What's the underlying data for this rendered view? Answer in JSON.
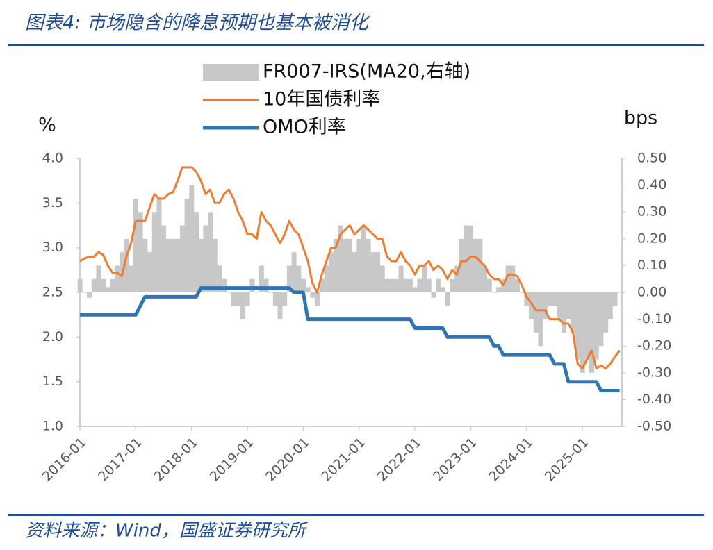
{
  "chart_data": {
    "type": "line",
    "title": "图表4: 市场隐含的降息预期也基本被消化",
    "source": "资料来源：Wind，国盛证券研究所",
    "y_label": "%",
    "y2_label": "bps",
    "x": [
      "2016-01",
      "2016-02",
      "2016-03",
      "2016-04",
      "2016-05",
      "2016-06",
      "2016-07",
      "2016-08",
      "2016-09",
      "2016-10",
      "2016-11",
      "2016-12",
      "2017-01",
      "2017-02",
      "2017-03",
      "2017-04",
      "2017-05",
      "2017-06",
      "2017-07",
      "2017-08",
      "2017-09",
      "2017-10",
      "2017-11",
      "2017-12",
      "2018-01",
      "2018-02",
      "2018-03",
      "2018-04",
      "2018-05",
      "2018-06",
      "2018-07",
      "2018-08",
      "2018-09",
      "2018-10",
      "2018-11",
      "2018-12",
      "2019-01",
      "2019-02",
      "2019-03",
      "2019-04",
      "2019-05",
      "2019-06",
      "2019-07",
      "2019-08",
      "2019-09",
      "2019-10",
      "2019-11",
      "2019-12",
      "2020-01",
      "2020-02",
      "2020-03",
      "2020-04",
      "2020-05",
      "2020-06",
      "2020-07",
      "2020-08",
      "2020-09",
      "2020-10",
      "2020-11",
      "2020-12",
      "2021-01",
      "2021-02",
      "2021-03",
      "2021-04",
      "2021-05",
      "2021-06",
      "2021-07",
      "2021-08",
      "2021-09",
      "2021-10",
      "2021-11",
      "2021-12",
      "2022-01",
      "2022-02",
      "2022-03",
      "2022-04",
      "2022-05",
      "2022-06",
      "2022-07",
      "2022-08",
      "2022-09",
      "2022-10",
      "2022-11",
      "2022-12",
      "2023-01",
      "2023-02",
      "2023-03",
      "2023-04",
      "2023-05",
      "2023-06",
      "2023-07",
      "2023-08",
      "2023-09",
      "2023-10",
      "2023-11",
      "2023-12",
      "2024-01",
      "2024-02",
      "2024-03",
      "2024-04",
      "2024-05",
      "2024-06",
      "2024-07",
      "2024-08",
      "2024-09",
      "2024-10",
      "2024-11",
      "2024-12",
      "2025-01",
      "2025-02",
      "2025-03",
      "2025-04",
      "2025-05",
      "2025-06",
      "2025-07",
      "2025-08",
      "2025-09"
    ],
    "series": [
      {
        "name": "FR007-IRS(MA20,右轴)",
        "color": "#c8c8c8",
        "axis": "y2",
        "kind": "bar",
        "values": [
          0.05,
          0.0,
          -0.02,
          0.05,
          0.1,
          0.05,
          0.02,
          0.05,
          0.1,
          0.15,
          0.2,
          0.1,
          0.35,
          0.3,
          0.2,
          0.15,
          0.3,
          0.35,
          0.25,
          0.2,
          0.2,
          0.2,
          0.25,
          0.35,
          0.4,
          0.3,
          0.2,
          0.25,
          0.3,
          0.2,
          0.1,
          0.05,
          0.0,
          -0.05,
          -0.05,
          -0.1,
          -0.05,
          0.05,
          0.0,
          0.1,
          0.05,
          0.0,
          -0.05,
          -0.1,
          -0.05,
          0.1,
          0.15,
          0.1,
          0.05,
          0.02,
          -0.02,
          -0.05,
          0.05,
          0.1,
          0.15,
          0.2,
          0.25,
          0.2,
          0.2,
          0.15,
          0.2,
          0.25,
          0.2,
          0.15,
          0.15,
          0.1,
          0.05,
          0.05,
          0.05,
          0.1,
          0.05,
          0.05,
          0.02,
          0.05,
          0.1,
          0.05,
          -0.02,
          0.05,
          0.02,
          -0.05,
          0.05,
          0.1,
          0.2,
          0.25,
          0.25,
          0.2,
          0.2,
          0.1,
          0.05,
          0.0,
          0.02,
          0.05,
          0.1,
          0.1,
          0.05,
          0.0,
          -0.05,
          -0.1,
          -0.15,
          -0.2,
          -0.1,
          -0.05,
          -0.05,
          -0.1,
          -0.15,
          -0.1,
          -0.15,
          -0.25,
          -0.3,
          -0.25,
          -0.3,
          -0.25,
          -0.2,
          -0.15,
          -0.1,
          -0.05,
          0.0
        ]
      },
      {
        "name": "10年国债利率",
        "color": "#ed7d31",
        "width": 3,
        "values": [
          2.85,
          2.88,
          2.9,
          2.9,
          2.95,
          2.92,
          2.8,
          2.72,
          2.72,
          2.68,
          2.9,
          3.05,
          3.3,
          3.3,
          3.3,
          3.45,
          3.6,
          3.55,
          3.55,
          3.6,
          3.62,
          3.75,
          3.9,
          3.9,
          3.9,
          3.85,
          3.75,
          3.6,
          3.65,
          3.5,
          3.5,
          3.6,
          3.65,
          3.55,
          3.4,
          3.3,
          3.15,
          3.15,
          3.1,
          3.4,
          3.3,
          3.25,
          3.15,
          3.05,
          3.15,
          3.3,
          3.2,
          3.15,
          3.0,
          2.85,
          2.6,
          2.5,
          2.7,
          2.85,
          3.0,
          3.0,
          3.15,
          3.2,
          3.25,
          3.15,
          3.2,
          3.25,
          3.2,
          3.15,
          3.1,
          3.1,
          2.9,
          2.85,
          2.85,
          2.95,
          2.85,
          2.8,
          2.7,
          2.8,
          2.8,
          2.85,
          2.75,
          2.8,
          2.75,
          2.65,
          2.75,
          2.7,
          2.85,
          2.85,
          2.9,
          2.9,
          2.85,
          2.8,
          2.7,
          2.65,
          2.65,
          2.58,
          2.7,
          2.7,
          2.68,
          2.58,
          2.45,
          2.38,
          2.3,
          2.3,
          2.3,
          2.2,
          2.2,
          2.2,
          2.15,
          2.15,
          2.05,
          1.7,
          1.65,
          1.75,
          1.85,
          1.65,
          1.68,
          1.65,
          1.7,
          1.78,
          1.85
        ]
      },
      {
        "name": "OMO利率",
        "color": "#2e75b6",
        "width": 5,
        "values": [
          2.25,
          2.25,
          2.25,
          2.25,
          2.25,
          2.25,
          2.25,
          2.25,
          2.25,
          2.25,
          2.25,
          2.25,
          2.25,
          2.35,
          2.45,
          2.45,
          2.45,
          2.45,
          2.45,
          2.45,
          2.45,
          2.45,
          2.45,
          2.45,
          2.45,
          2.45,
          2.55,
          2.55,
          2.55,
          2.55,
          2.55,
          2.55,
          2.55,
          2.55,
          2.55,
          2.55,
          2.55,
          2.55,
          2.55,
          2.55,
          2.55,
          2.55,
          2.55,
          2.55,
          2.55,
          2.55,
          2.5,
          2.5,
          2.5,
          2.2,
          2.2,
          2.2,
          2.2,
          2.2,
          2.2,
          2.2,
          2.2,
          2.2,
          2.2,
          2.2,
          2.2,
          2.2,
          2.2,
          2.2,
          2.2,
          2.2,
          2.2,
          2.2,
          2.2,
          2.2,
          2.2,
          2.2,
          2.1,
          2.1,
          2.1,
          2.1,
          2.1,
          2.1,
          2.1,
          2.0,
          2.0,
          2.0,
          2.0,
          2.0,
          2.0,
          2.0,
          2.0,
          2.0,
          2.0,
          1.9,
          1.9,
          1.8,
          1.8,
          1.8,
          1.8,
          1.8,
          1.8,
          1.8,
          1.8,
          1.8,
          1.8,
          1.8,
          1.7,
          1.7,
          1.7,
          1.5,
          1.5,
          1.5,
          1.5,
          1.5,
          1.5,
          1.5,
          1.4,
          1.4,
          1.4,
          1.4,
          1.4
        ]
      }
    ],
    "xticks": [
      "2016-01",
      "2017-01",
      "2018-01",
      "2019-01",
      "2020-01",
      "2021-01",
      "2022-01",
      "2023-01",
      "2024-01",
      "2025-01"
    ],
    "ylim": [
      1.0,
      4.0
    ],
    "yticks": [
      {
        "value": 1.0,
        "label": "1.0"
      },
      {
        "value": 1.5,
        "label": "1.5"
      },
      {
        "value": 2.0,
        "label": "2.0"
      },
      {
        "value": 2.5,
        "label": "2.5"
      },
      {
        "value": 3.0,
        "label": "3.0"
      },
      {
        "value": 3.5,
        "label": "3.5"
      },
      {
        "value": 4.0,
        "label": "4.0"
      }
    ],
    "y2lim": [
      -0.5,
      0.5
    ],
    "y2ticks": [
      {
        "value": -0.5,
        "label": "-0.50"
      },
      {
        "value": -0.4,
        "label": "-0.40"
      },
      {
        "value": -0.3,
        "label": "-0.30"
      },
      {
        "value": -0.2,
        "label": "-0.20"
      },
      {
        "value": -0.1,
        "label": "-0.10"
      },
      {
        "value": 0,
        "label": "0.00"
      },
      {
        "value": 0.1,
        "label": "0.10"
      },
      {
        "value": 0.2,
        "label": "0.20"
      },
      {
        "value": 0.3,
        "label": "0.30"
      },
      {
        "value": 0.4,
        "label": "0.40"
      },
      {
        "value": 0.5,
        "label": "0.50"
      }
    ]
  }
}
